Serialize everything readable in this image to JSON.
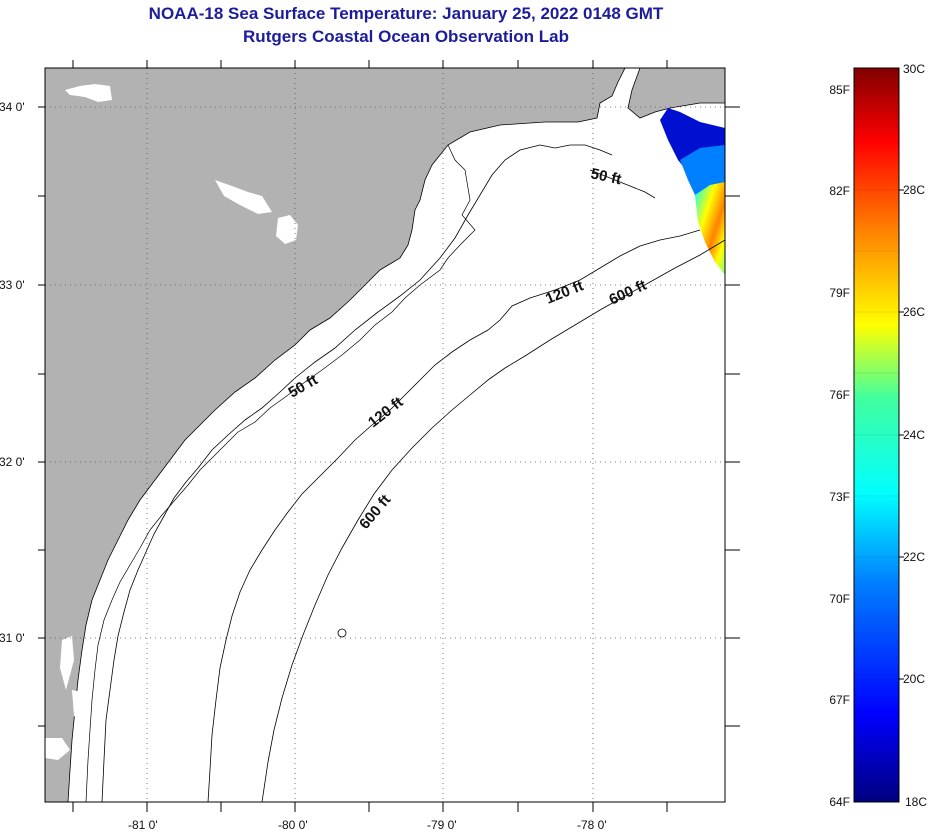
{
  "title": {
    "line1": "NOAA-18 Sea Surface Temperature:  January 25, 2022 0148 GMT",
    "line2": "Rutgers Coastal Ocean Observation Lab"
  },
  "map": {
    "lat_labels": [
      "34 0'",
      "33 0'",
      "32 0'",
      "31 0'"
    ],
    "lon_labels": [
      "-81 0'",
      "-80 0'",
      "-79 0'",
      "-78 0'"
    ],
    "contour_labels": {
      "c50_north": "50 ft",
      "c50_south": "50 ft",
      "c120_north": "120 ft",
      "c120_south": "120 ft",
      "c600_north": "600 ft",
      "c600_south": "600 ft"
    },
    "colors": {
      "land": "#b2b2b2",
      "water": "#ffffff",
      "coast": "#000000"
    }
  },
  "colorbar": {
    "fahrenheit_labels": [
      "85F",
      "82F",
      "79F",
      "76F",
      "73F",
      "70F",
      "67F",
      "64F"
    ],
    "celsius_labels": [
      "30C",
      "28C",
      "26C",
      "24C",
      "22C",
      "20C",
      "18C"
    ],
    "range_c": [
      18,
      30
    ]
  }
}
